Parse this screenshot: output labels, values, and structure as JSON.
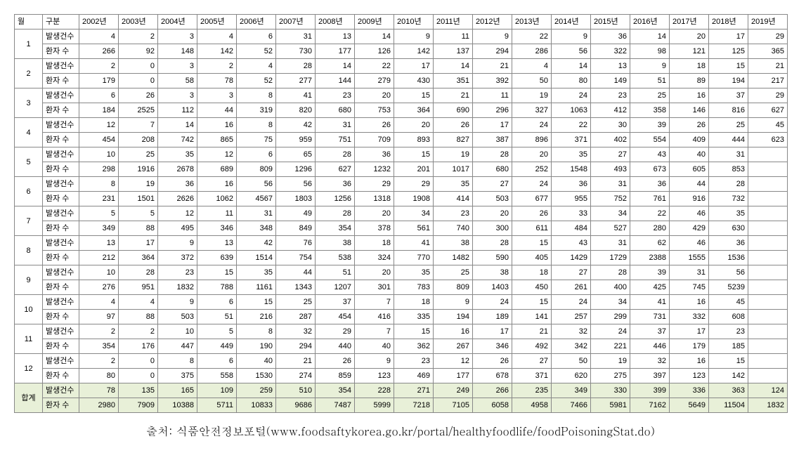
{
  "header": {
    "month_label": "월",
    "category_label": "구분",
    "years": [
      "2002년",
      "2003년",
      "2004년",
      "2005년",
      "2006년",
      "2007년",
      "2008년",
      "2009년",
      "2010년",
      "2011년",
      "2012년",
      "2013년",
      "2014년",
      "2015년",
      "2016년",
      "2017년",
      "2018년",
      "2019년"
    ]
  },
  "category_labels": {
    "cases": "발생건수",
    "patients": "환자 수"
  },
  "total_label": "합계",
  "months": [
    {
      "month": "1",
      "cases": [
        4,
        2,
        3,
        4,
        6,
        31,
        13,
        14,
        9,
        11,
        9,
        22,
        9,
        36,
        14,
        20,
        17,
        29
      ],
      "patients": [
        266,
        92,
        148,
        142,
        52,
        730,
        177,
        126,
        142,
        137,
        294,
        286,
        56,
        322,
        98,
        121,
        125,
        365
      ]
    },
    {
      "month": "2",
      "cases": [
        2,
        0,
        3,
        2,
        4,
        28,
        14,
        22,
        17,
        14,
        21,
        4,
        14,
        13,
        9,
        18,
        15,
        21
      ],
      "patients": [
        179,
        0,
        58,
        78,
        52,
        277,
        144,
        279,
        430,
        351,
        392,
        50,
        80,
        149,
        51,
        89,
        194,
        217
      ]
    },
    {
      "month": "3",
      "cases": [
        6,
        26,
        3,
        3,
        8,
        41,
        23,
        20,
        15,
        21,
        11,
        19,
        24,
        23,
        25,
        16,
        37,
        29
      ],
      "patients": [
        184,
        2525,
        112,
        44,
        319,
        820,
        680,
        753,
        364,
        690,
        296,
        327,
        1063,
        412,
        358,
        146,
        816,
        627
      ]
    },
    {
      "month": "4",
      "cases": [
        12,
        7,
        14,
        16,
        8,
        42,
        31,
        26,
        20,
        26,
        17,
        24,
        22,
        30,
        39,
        26,
        25,
        45
      ],
      "patients": [
        454,
        208,
        742,
        865,
        75,
        959,
        751,
        709,
        893,
        827,
        387,
        896,
        371,
        402,
        554,
        409,
        444,
        623
      ]
    },
    {
      "month": "5",
      "cases": [
        10,
        25,
        35,
        12,
        6,
        65,
        28,
        36,
        15,
        19,
        28,
        20,
        35,
        27,
        43,
        40,
        31,
        null
      ],
      "patients": [
        298,
        1916,
        2678,
        689,
        809,
        1296,
        627,
        1232,
        201,
        1017,
        680,
        252,
        1548,
        493,
        673,
        605,
        853,
        null
      ]
    },
    {
      "month": "6",
      "cases": [
        8,
        19,
        36,
        16,
        56,
        56,
        36,
        29,
        29,
        35,
        27,
        24,
        36,
        31,
        36,
        44,
        28,
        null
      ],
      "patients": [
        231,
        1501,
        2626,
        1062,
        4567,
        1803,
        1256,
        1318,
        1908,
        414,
        503,
        677,
        955,
        752,
        761,
        916,
        732,
        null
      ]
    },
    {
      "month": "7",
      "cases": [
        5,
        5,
        12,
        11,
        31,
        49,
        28,
        20,
        34,
        23,
        20,
        26,
        33,
        34,
        22,
        46,
        35,
        null
      ],
      "patients": [
        349,
        88,
        495,
        346,
        348,
        849,
        354,
        378,
        561,
        740,
        300,
        611,
        484,
        527,
        280,
        429,
        630,
        null
      ]
    },
    {
      "month": "8",
      "cases": [
        13,
        17,
        9,
        13,
        42,
        76,
        38,
        18,
        41,
        38,
        28,
        15,
        43,
        31,
        62,
        46,
        36,
        null
      ],
      "patients": [
        212,
        364,
        372,
        639,
        1514,
        754,
        538,
        324,
        770,
        1482,
        590,
        405,
        1429,
        1729,
        2388,
        1555,
        1536,
        null
      ]
    },
    {
      "month": "9",
      "cases": [
        10,
        28,
        23,
        15,
        35,
        44,
        51,
        20,
        35,
        25,
        38,
        18,
        27,
        28,
        39,
        31,
        56,
        null
      ],
      "patients": [
        276,
        951,
        1832,
        788,
        1161,
        1343,
        1207,
        301,
        783,
        809,
        1403,
        450,
        261,
        400,
        425,
        745,
        5239,
        null
      ]
    },
    {
      "month": "10",
      "cases": [
        4,
        4,
        9,
        6,
        15,
        25,
        37,
        7,
        18,
        9,
        24,
        15,
        24,
        34,
        41,
        16,
        45,
        null
      ],
      "patients": [
        97,
        88,
        503,
        51,
        216,
        287,
        454,
        416,
        335,
        194,
        189,
        141,
        257,
        299,
        731,
        332,
        608,
        null
      ]
    },
    {
      "month": "11",
      "cases": [
        2,
        2,
        10,
        5,
        8,
        32,
        29,
        7,
        15,
        16,
        17,
        21,
        32,
        24,
        37,
        17,
        23,
        null
      ],
      "patients": [
        354,
        176,
        447,
        449,
        190,
        294,
        440,
        40,
        362,
        267,
        346,
        492,
        342,
        221,
        446,
        179,
        185,
        null
      ]
    },
    {
      "month": "12",
      "cases": [
        2,
        0,
        8,
        6,
        40,
        21,
        26,
        9,
        23,
        12,
        26,
        27,
        50,
        19,
        32,
        16,
        15,
        null
      ],
      "patients": [
        80,
        0,
        375,
        558,
        1530,
        274,
        859,
        123,
        469,
        177,
        678,
        371,
        620,
        275,
        397,
        123,
        142,
        null
      ]
    }
  ],
  "totals": {
    "cases": [
      78,
      135,
      165,
      109,
      259,
      510,
      354,
      228,
      271,
      249,
      266,
      235,
      349,
      330,
      399,
      336,
      363,
      124
    ],
    "patients": [
      2980,
      7909,
      10388,
      5711,
      10833,
      9686,
      7487,
      5999,
      7218,
      7105,
      6058,
      4958,
      7466,
      5981,
      7162,
      5649,
      11504,
      1832
    ]
  },
  "source_text": "출처: 식품안전정보포털(www.foodsaftykorea.go.kr/portal/healthyfoodlife/foodPoisoningStat.do)",
  "style": {
    "total_row_bg": "#e8f0d8",
    "border_color": "#888888",
    "font_size_table": 11,
    "font_size_source": 16
  }
}
